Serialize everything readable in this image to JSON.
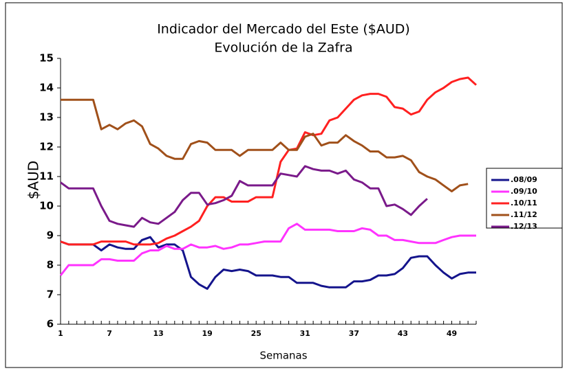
{
  "chart_data": {
    "type": "line",
    "title": "Indicador del Mercado del Este ($AUD)",
    "subtitle": "Evolución de la Zafra",
    "x_label": "Semanas",
    "y_label": "$AUD",
    "x": [
      1,
      2,
      3,
      4,
      5,
      6,
      7,
      8,
      9,
      10,
      11,
      12,
      13,
      14,
      15,
      16,
      17,
      18,
      19,
      20,
      21,
      22,
      23,
      24,
      25,
      26,
      27,
      28,
      29,
      30,
      31,
      32,
      33,
      34,
      35,
      36,
      37,
      38,
      39,
      40,
      41,
      42,
      43,
      44,
      45,
      46,
      47,
      48,
      49,
      50,
      51,
      52
    ],
    "xlim": [
      1,
      52
    ],
    "xticks": [
      1,
      7,
      13,
      19,
      25,
      31,
      37,
      43,
      49
    ],
    "ylim": [
      6,
      15
    ],
    "yticks": [
      6,
      7,
      8,
      9,
      10,
      11,
      12,
      13,
      14,
      15
    ],
    "legend": "right",
    "series": [
      {
        "name": ".08/09",
        "color": "#14148c",
        "values": [
          8.8,
          8.7,
          8.7,
          8.7,
          8.7,
          8.5,
          8.7,
          8.6,
          8.55,
          8.55,
          8.85,
          8.95,
          8.6,
          8.7,
          8.7,
          8.5,
          7.6,
          7.35,
          7.2,
          7.6,
          7.85,
          7.8,
          7.85,
          7.8,
          7.65,
          7.65,
          7.65,
          7.6,
          7.6,
          7.4,
          7.4,
          7.4,
          7.3,
          7.25,
          7.25,
          7.25,
          7.45,
          7.45,
          7.5,
          7.65,
          7.65,
          7.7,
          7.9,
          8.25,
          8.3,
          8.3,
          8.0,
          7.75,
          7.55,
          7.7,
          7.75,
          7.75
        ]
      },
      {
        "name": ".09/10",
        "color": "#ff33ff",
        "values": [
          7.65,
          8.0,
          8.0,
          8.0,
          8.0,
          8.2,
          8.2,
          8.15,
          8.15,
          8.15,
          8.4,
          8.5,
          8.5,
          8.65,
          8.55,
          8.55,
          8.7,
          8.6,
          8.6,
          8.65,
          8.55,
          8.6,
          8.7,
          8.7,
          8.75,
          8.8,
          8.8,
          8.8,
          9.25,
          9.4,
          9.2,
          9.2,
          9.2,
          9.2,
          9.15,
          9.15,
          9.15,
          9.25,
          9.2,
          9.0,
          9.0,
          8.85,
          8.85,
          8.8,
          8.75,
          8.75,
          8.75,
          8.85,
          8.95,
          9.0,
          9.0,
          9.0
        ]
      },
      {
        "name": ".10/11",
        "color": "#ff2020",
        "values": [
          8.8,
          8.7,
          8.7,
          8.7,
          8.7,
          8.8,
          8.8,
          8.8,
          8.8,
          8.7,
          8.7,
          8.7,
          8.75,
          8.9,
          9.0,
          9.15,
          9.3,
          9.5,
          10.0,
          10.3,
          10.3,
          10.15,
          10.15,
          10.15,
          10.3,
          10.3,
          10.3,
          11.5,
          11.9,
          11.95,
          12.5,
          12.4,
          12.45,
          12.9,
          13.0,
          13.3,
          13.6,
          13.75,
          13.8,
          13.8,
          13.7,
          13.35,
          13.3,
          13.1,
          13.2,
          13.6,
          13.85,
          14.0,
          14.2,
          14.3,
          14.35,
          14.1
        ]
      },
      {
        "name": ".11/12",
        "color": "#a0501a",
        "values": [
          13.6,
          13.6,
          13.6,
          13.6,
          13.6,
          12.6,
          12.75,
          12.6,
          12.8,
          12.9,
          12.7,
          12.1,
          11.95,
          11.7,
          11.6,
          11.6,
          12.1,
          12.2,
          12.15,
          11.9,
          11.9,
          11.9,
          11.7,
          11.9,
          11.9,
          11.9,
          11.9,
          12.15,
          11.9,
          11.9,
          12.35,
          12.45,
          12.05,
          12.15,
          12.15,
          12.4,
          12.2,
          12.05,
          11.85,
          11.85,
          11.65,
          11.65,
          11.7,
          11.55,
          11.15,
          11.0,
          10.9,
          10.7,
          10.5,
          10.7,
          10.75,
          null
        ]
      },
      {
        "name": ".12/13",
        "color": "#7a1a8a",
        "values": [
          10.8,
          10.6,
          10.6,
          10.6,
          10.6,
          10.0,
          9.5,
          9.4,
          9.35,
          9.3,
          9.6,
          9.45,
          9.4,
          9.6,
          9.8,
          10.2,
          10.45,
          10.45,
          10.05,
          10.1,
          10.2,
          10.35,
          10.85,
          10.7,
          10.7,
          10.7,
          10.7,
          11.1,
          11.05,
          11.0,
          11.35,
          11.25,
          11.2,
          11.2,
          11.1,
          11.2,
          10.9,
          10.8,
          10.6,
          10.6,
          10.0,
          10.05,
          9.9,
          9.7,
          10.0,
          10.25,
          null,
          null,
          null,
          null,
          null,
          null
        ]
      }
    ]
  }
}
